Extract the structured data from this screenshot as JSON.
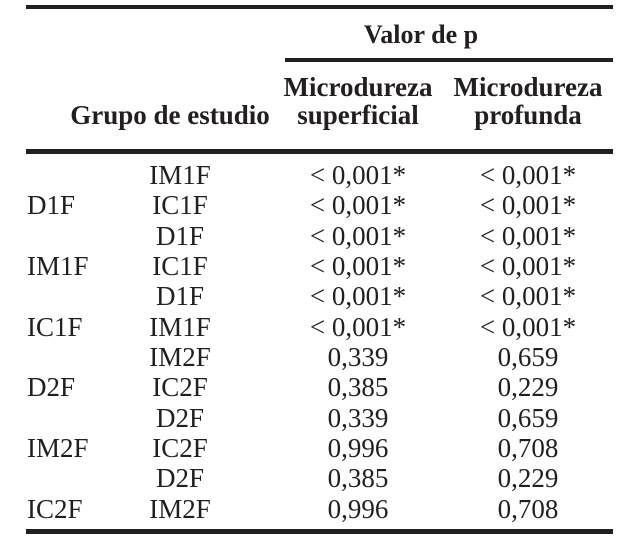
{
  "table": {
    "spanner_header": "Valor de p",
    "group_header": "Grupo de estudio",
    "col_superficial": {
      "line1": "Microdureza",
      "line2": "superficial"
    },
    "col_profunda": {
      "line1": "Microdureza",
      "line2": "profunda"
    },
    "rows": [
      {
        "g1": "",
        "g2": "IM1F",
        "sup": "< 0,001*",
        "prof": "< 0,001*"
      },
      {
        "g1": "D1F",
        "g2": "IC1F",
        "sup": "< 0,001*",
        "prof": "< 0,001*"
      },
      {
        "g1": "",
        "g2": "D1F",
        "sup": "< 0,001*",
        "prof": "< 0,001*"
      },
      {
        "g1": "IM1F",
        "g2": "IC1F",
        "sup": "< 0,001*",
        "prof": "< 0,001*"
      },
      {
        "g1": "",
        "g2": "D1F",
        "sup": "< 0,001*",
        "prof": "< 0,001*"
      },
      {
        "g1": "IC1F",
        "g2": "IM1F",
        "sup": "< 0,001*",
        "prof": "< 0,001*"
      },
      {
        "g1": "",
        "g2": "IM2F",
        "sup": "0,339",
        "prof": "0,659"
      },
      {
        "g1": "D2F",
        "g2": "IC2F",
        "sup": "0,385",
        "prof": "0,229"
      },
      {
        "g1": "",
        "g2": "D2F",
        "sup": "0,339",
        "prof": "0,659"
      },
      {
        "g1": "IM2F",
        "g2": "IC2F",
        "sup": "0,996",
        "prof": "0,708"
      },
      {
        "g1": "",
        "g2": "D2F",
        "sup": "0,385",
        "prof": "0,229"
      },
      {
        "g1": "IC2F",
        "g2": "IM2F",
        "sup": "0,996",
        "prof": "0,708"
      }
    ],
    "colors": {
      "text": "#231f20",
      "rule": "#231f20",
      "background": "#ffffff"
    }
  }
}
